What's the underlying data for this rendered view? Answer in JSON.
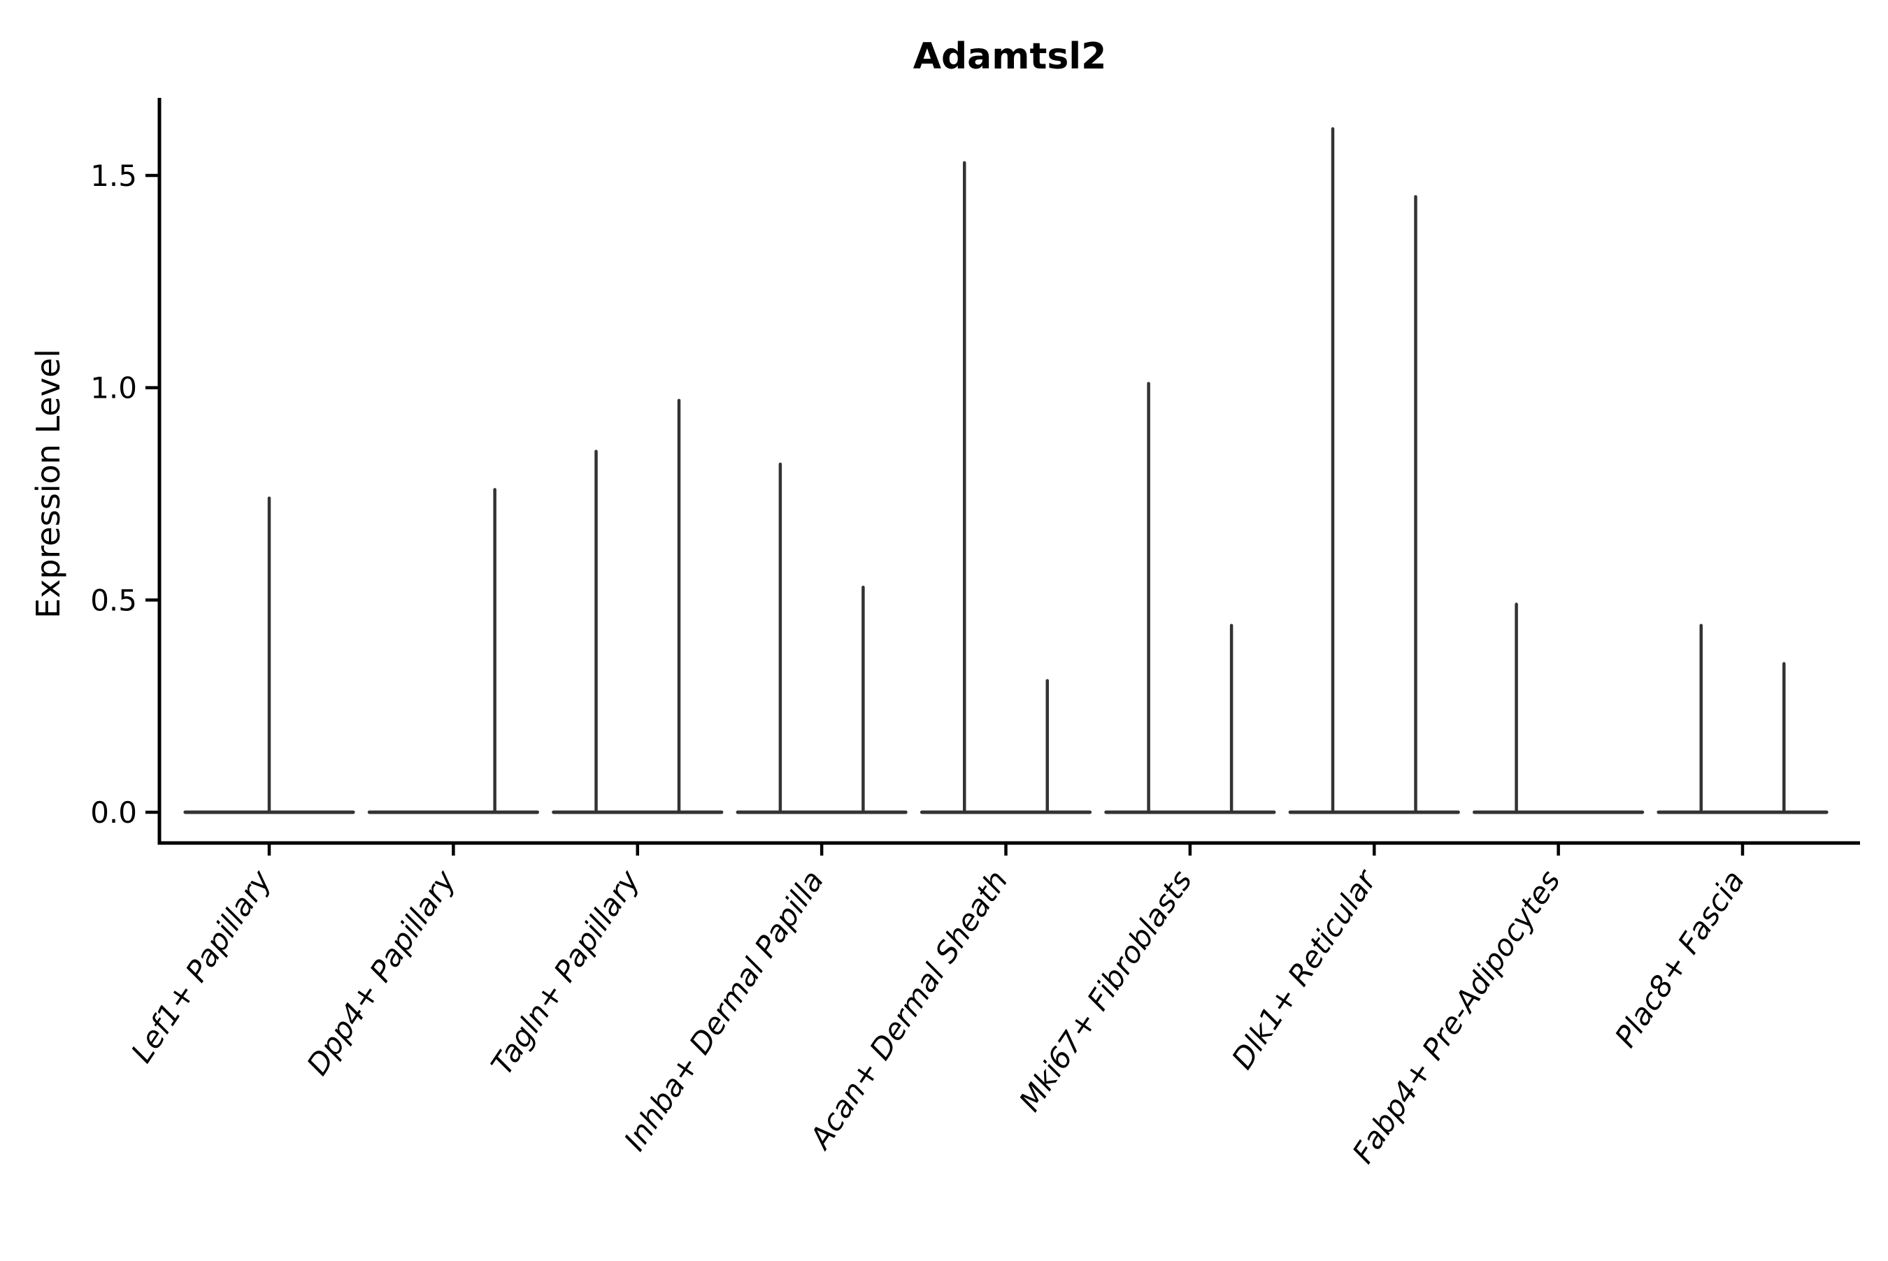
{
  "figure": {
    "background": "#ffffff"
  },
  "chart_data": {
    "type": "violin",
    "title": "Adamtsl2",
    "ylabel": "Expression Level",
    "xlabel": "",
    "grid": false,
    "legend": null,
    "axis_color": "#000000",
    "violin_color": "#333333",
    "ylim": [
      -0.07,
      1.68
    ],
    "yticks": [
      0.0,
      0.5,
      1.0,
      1.5
    ],
    "ytick_labels": [
      "0.0",
      "0.5",
      "1.0",
      "1.5"
    ],
    "categories": [
      "Lef1+ Papillary",
      "Dpp4+ Papillary",
      "Tagln+ Papillary",
      "Inhba+ Dermal Papilla",
      "Acan+ Dermal Sheath",
      "Mki67+ Fibroblasts",
      "Dlk1+ Reticular",
      "Fabp4+ Pre-Adipocytes",
      "Plac8+ Fascia"
    ],
    "series": [
      {
        "category": "Lef1+ Papillary",
        "violins": [
          {
            "offset": 0.0,
            "max": 0.74
          }
        ]
      },
      {
        "category": "Dpp4+ Papillary",
        "violins": [
          {
            "offset": 0.225,
            "max": 0.76
          }
        ]
      },
      {
        "category": "Tagln+ Papillary",
        "violins": [
          {
            "offset": -0.225,
            "max": 0.85
          },
          {
            "offset": 0.225,
            "max": 0.97
          }
        ]
      },
      {
        "category": "Inhba+ Dermal Papilla",
        "violins": [
          {
            "offset": -0.225,
            "max": 0.82
          },
          {
            "offset": 0.225,
            "max": 0.53
          }
        ]
      },
      {
        "category": "Acan+ Dermal Sheath",
        "violins": [
          {
            "offset": -0.225,
            "max": 1.53
          },
          {
            "offset": 0.225,
            "max": 0.31
          }
        ]
      },
      {
        "category": "Mki67+ Fibroblasts",
        "violins": [
          {
            "offset": -0.225,
            "max": 1.01
          },
          {
            "offset": 0.225,
            "max": 0.44
          }
        ]
      },
      {
        "category": "Dlk1+ Reticular",
        "violins": [
          {
            "offset": -0.225,
            "max": 1.61
          },
          {
            "offset": 0.225,
            "max": 1.45
          }
        ]
      },
      {
        "category": "Fabp4+ Pre-Adipocytes",
        "violins": [
          {
            "offset": -0.228,
            "max": 0.49
          }
        ]
      },
      {
        "category": "Plac8+ Fascia",
        "violins": [
          {
            "offset": -0.225,
            "max": 0.44
          },
          {
            "offset": 0.225,
            "max": 0.35
          }
        ]
      }
    ],
    "baseline_value": 0.0,
    "baseline_halfwidth": 0.456
  }
}
